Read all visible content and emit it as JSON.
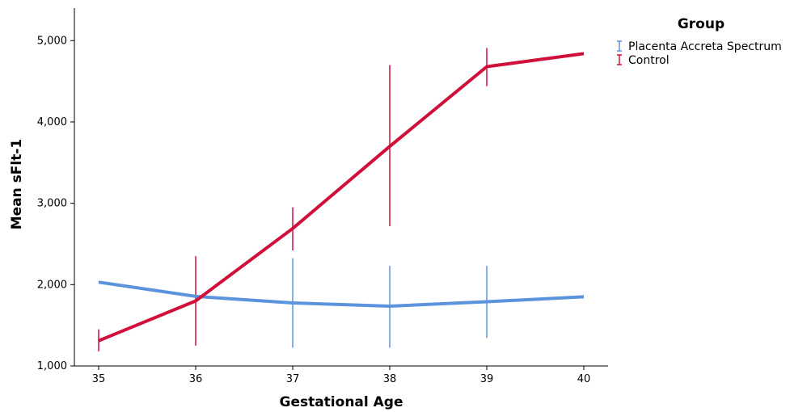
{
  "chart_data": {
    "type": "line",
    "xlabel": "Gestational Age",
    "ylabel": "Mean sFlt-1",
    "categories": [
      "35",
      "36",
      "37",
      "38",
      "39",
      "40"
    ],
    "ylim": [
      1000,
      5400
    ],
    "yticks": [
      1000,
      2000,
      3000,
      4000,
      5000
    ],
    "ytick_labels": [
      "1,000",
      "2,000",
      "3,000",
      "4,000",
      "5,000"
    ],
    "grid": false,
    "legend": {
      "title": "Group",
      "placement": "top-right"
    },
    "series": [
      {
        "name": "Placenta Accreta Spectrum",
        "color": "#5b93dc",
        "values": [
          2030,
          1855,
          1775,
          1735,
          1790,
          1850
        ],
        "error_low": [
          null,
          null,
          1225,
          1225,
          1345,
          null
        ],
        "error_high": [
          null,
          null,
          2325,
          2230,
          2230,
          null
        ]
      },
      {
        "name": "Control",
        "color": "#d0103a",
        "values": [
          1310,
          1800,
          2690,
          3700,
          4680,
          4840
        ],
        "error_low": [
          1180,
          1250,
          2420,
          2720,
          4440,
          null
        ],
        "error_high": [
          1450,
          2350,
          2950,
          4700,
          4910,
          null
        ]
      }
    ]
  }
}
